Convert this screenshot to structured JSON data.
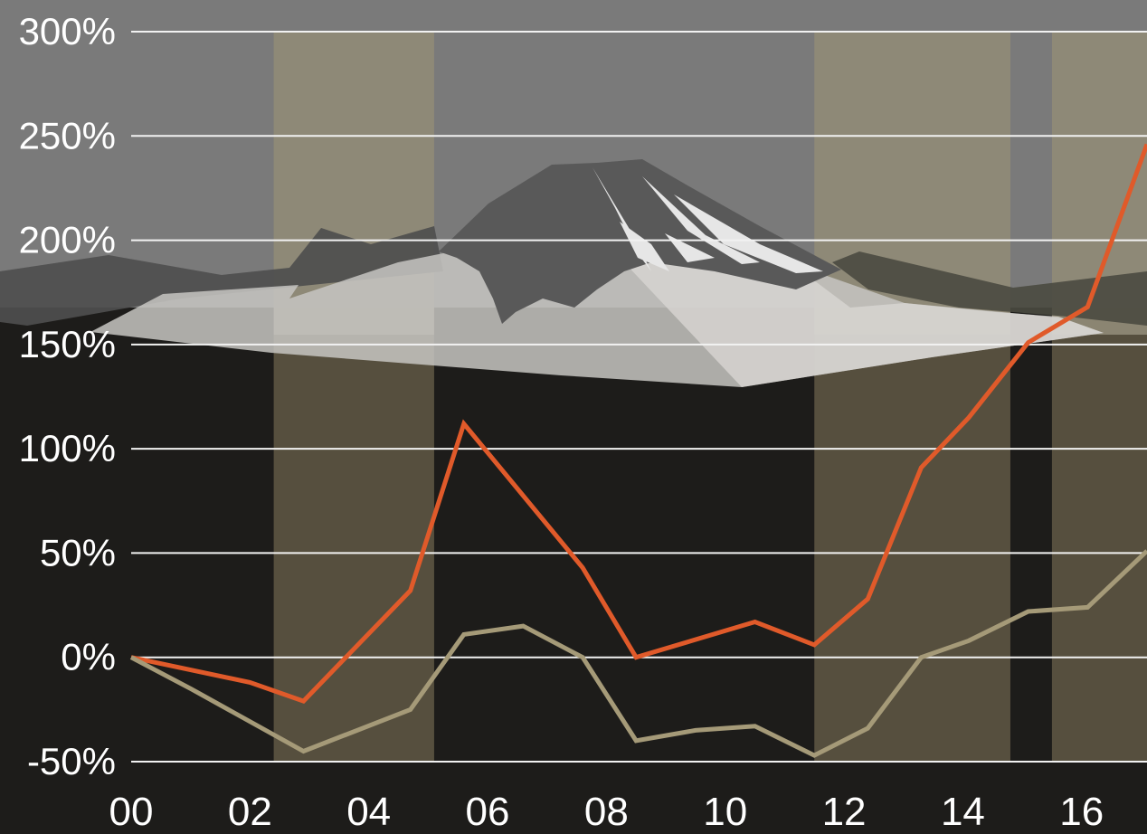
{
  "chart_data": {
    "type": "line",
    "title": "",
    "xlabel": "",
    "ylabel": "",
    "x_ticks": [
      "00",
      "02",
      "04",
      "06",
      "08",
      "10",
      "12",
      "14",
      "16"
    ],
    "x_tick_values": [
      2000,
      2002,
      2004,
      2006,
      2008,
      2010,
      2012,
      2014,
      2016
    ],
    "y_ticks": [
      "300%",
      "250%",
      "200%",
      "150%",
      "100%",
      "50%",
      "0%",
      "-50%"
    ],
    "y_tick_values": [
      300,
      250,
      200,
      150,
      100,
      50,
      0,
      -50
    ],
    "xlim": [
      2000,
      2017.1
    ],
    "ylim": [
      -50,
      300
    ],
    "grid": true,
    "legend": "none",
    "shaded_periods": [
      {
        "start": 2002.4,
        "end": 2005.1
      },
      {
        "start": 2011.5,
        "end": 2014.8
      },
      {
        "start": 2015.5,
        "end": 2017.1
      }
    ],
    "series": [
      {
        "color": "#e05a2a",
        "x": [
          2000,
          2002,
          2002.9,
          2004.7,
          2005.6,
          2007.6,
          2008.5,
          2010.5,
          2011.5,
          2012.4,
          2013.3,
          2014.1,
          2015.1,
          2016.1,
          2017.1
        ],
        "values": [
          0,
          -12,
          -21,
          32,
          112,
          43,
          0,
          17,
          6,
          28,
          91,
          115,
          151,
          168,
          246
        ]
      },
      {
        "color": "#a59a78",
        "x": [
          2000,
          2001,
          2002.9,
          2004.7,
          2005.6,
          2006.6,
          2007.6,
          2008.5,
          2009.5,
          2010.5,
          2011.5,
          2012.4,
          2013.3,
          2014.1,
          2015.1,
          2016.1,
          2017.1
        ],
        "values": [
          0,
          -15,
          -45,
          -25,
          11,
          15,
          0,
          -40,
          -35,
          -33,
          -47,
          -34,
          0,
          8,
          22,
          24,
          51
        ]
      }
    ],
    "colors": {
      "sky": "#7a7a7a",
      "ground": "#1d1c1a",
      "shade_top": "#8f8a76",
      "shade_bottom": "#5a5240",
      "grid": "#f2f2f2",
      "text": "#ffffff"
    }
  }
}
